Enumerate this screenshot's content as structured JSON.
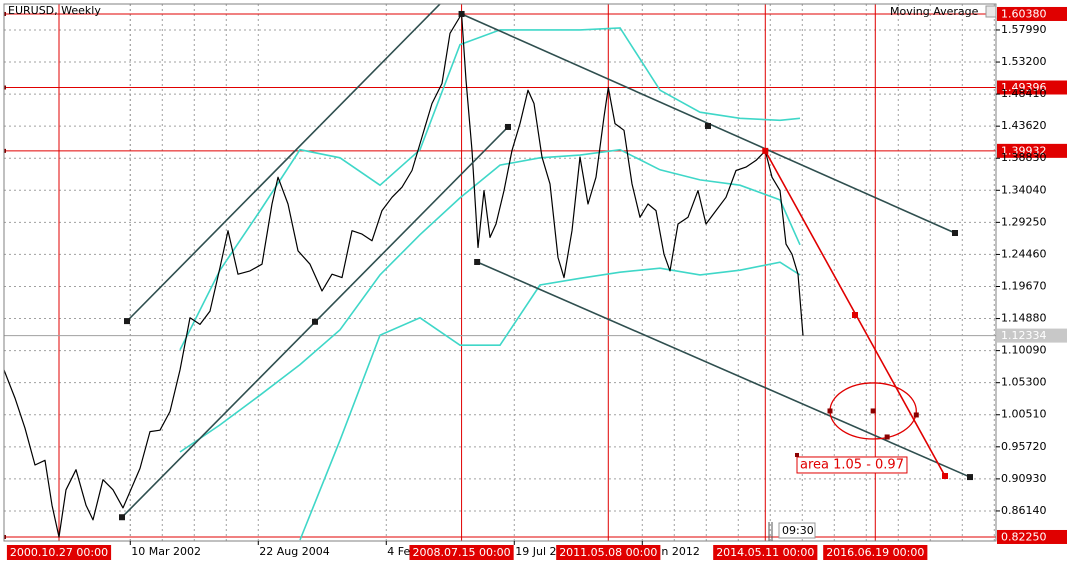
{
  "chart_data": {
    "type": "line",
    "title": "EURUSD, Weekly",
    "timer": "09:30",
    "grid": true,
    "xlim": [
      "1999-10-08",
      "2018-10-12"
    ],
    "ylim": [
      0.8165,
      1.6187
    ],
    "yticks": [
      {
        "value": 1.5799,
        "label": "1.57990"
      },
      {
        "value": 1.532,
        "label": "1.53200"
      },
      {
        "value": 1.4841,
        "label": "1.48410"
      },
      {
        "value": 1.4362,
        "label": "1.43620"
      },
      {
        "value": 1.3883,
        "label": "1.38830"
      },
      {
        "value": 1.3404,
        "label": "1.34040"
      },
      {
        "value": 1.2925,
        "label": "1.29250"
      },
      {
        "value": 1.2446,
        "label": "1.24460"
      },
      {
        "value": 1.1967,
        "label": "1.19670"
      },
      {
        "value": 1.1488,
        "label": "1.14880"
      },
      {
        "value": 1.1009,
        "label": "1.10090"
      },
      {
        "value": 1.053,
        "label": "1.05300"
      },
      {
        "value": 1.0051,
        "label": "1.00510"
      },
      {
        "value": 0.9572,
        "label": "0.95720"
      },
      {
        "value": 0.9093,
        "label": "0.90930"
      },
      {
        "value": 0.8614,
        "label": "0.86140"
      }
    ],
    "xticks": [
      {
        "value": "2002-03-10",
        "label": "10 Mar 2002"
      },
      {
        "value": "2004-08-22",
        "label": "22 Aug 2004"
      },
      {
        "value": "2007-02-04",
        "label": "4 Fe"
      },
      {
        "value": "2009-07-19",
        "label": "19 Jul 2"
      },
      {
        "value": "2012-01-01",
        "label": "n 2012"
      }
    ],
    "hlines": [
      {
        "value": 1.6038,
        "label": "1.60380"
      },
      1.49396,
      1.39932,
      {
        "value": 0.8225,
        "label": "0.82250"
      }
    ],
    "line_color": "#e00000",
    "current_price": 1.12334,
    "vlines": [
      {
        "value": "2000-10-27",
        "label": "2000.10.27 00:00"
      },
      {
        "value": "2008-07-15",
        "label": "2008.07.15 00:00"
      },
      {
        "value": "2011-05-08",
        "label": "2011.05.08 00:00"
      },
      {
        "value": "2014-05-11",
        "label": "2014.05.11 00:00"
      },
      {
        "value": "2016-06-19",
        "label": "2016.06.19 00:00"
      }
    ],
    "x": [
      "1999-10-08",
      "1999-12-24",
      "2000-03-03",
      "2000-05-12",
      "2000-07-21",
      "2000-09-08",
      "2000-10-27",
      "2000-12-15",
      "2001-02-23",
      "2001-05-04",
      "2001-06-22",
      "2001-08-31",
      "2001-11-09",
      "2002-01-18",
      "2002-05-17",
      "2002-07-26",
      "2002-10-04",
      "2002-12-13",
      "2003-02-21",
      "2003-05-02",
      "2003-07-11",
      "2003-09-19",
      "2003-11-28",
      "2004-01-23",
      "2004-04-02",
      "2004-06-25",
      "2004-09-17",
      "2004-11-26",
      "2005-01-07",
      "2005-03-18",
      "2005-05-27",
      "2005-08-19",
      "2005-11-11",
      "2006-01-20",
      "2006-03-31",
      "2006-06-09",
      "2006-08-18",
      "2006-10-27",
      "2007-01-05",
      "2007-03-16",
      "2007-05-25",
      "2007-08-03",
      "2007-10-12",
      "2007-12-21",
      "2008-02-29",
      "2008-04-25",
      "2008-07-15",
      "2008-08-15",
      "2008-09-26",
      "2008-11-07",
      "2008-12-19",
      "2009-01-30",
      "2009-03-13",
      "2009-05-08",
      "2009-07-03",
      "2009-08-28",
      "2009-10-23",
      "2009-12-04",
      "2010-01-29",
      "2010-03-26",
      "2010-05-21",
      "2010-07-02",
      "2010-08-27",
      "2010-10-22",
      "2010-12-17",
      "2011-02-11",
      "2011-04-08",
      "2011-05-08",
      "2011-06-24",
      "2011-08-26",
      "2011-10-21",
      "2011-12-16",
      "2012-02-10",
      "2012-04-06",
      "2012-06-01",
      "2012-07-13",
      "2012-09-07",
      "2012-11-16",
      "2013-01-25",
      "2013-03-22",
      "2013-05-31",
      "2013-08-09",
      "2013-10-18",
      "2013-12-27",
      "2014-03-07",
      "2014-05-11",
      "2014-06-27",
      "2014-08-22",
      "2014-10-03",
      "2014-11-14",
      "2014-12-26",
      "2015-01-30"
    ],
    "series": [
      {
        "color": "#000000",
        "values": [
          1.072,
          1.03,
          0.985,
          0.93,
          0.937,
          0.87,
          0.8225,
          0.893,
          0.923,
          0.87,
          0.848,
          0.908,
          0.893,
          0.866,
          0.925,
          0.98,
          0.982,
          1.01,
          1.072,
          1.15,
          1.14,
          1.16,
          1.225,
          1.28,
          1.215,
          1.22,
          1.23,
          1.32,
          1.36,
          1.32,
          1.25,
          1.23,
          1.19,
          1.215,
          1.21,
          1.28,
          1.275,
          1.265,
          1.31,
          1.33,
          1.345,
          1.37,
          1.42,
          1.47,
          1.5,
          1.575,
          1.6038,
          1.505,
          1.4,
          1.255,
          1.34,
          1.27,
          1.29,
          1.34,
          1.4,
          1.44,
          1.49,
          1.47,
          1.39,
          1.35,
          1.24,
          1.21,
          1.28,
          1.39,
          1.32,
          1.36,
          1.45,
          1.494,
          1.44,
          1.43,
          1.35,
          1.3,
          1.32,
          1.31,
          1.245,
          1.22,
          1.29,
          1.3,
          1.34,
          1.29,
          1.31,
          1.33,
          1.37,
          1.375,
          1.385,
          1.3993,
          1.36,
          1.34,
          1.26,
          1.245,
          1.215,
          1.12334
        ]
      }
    ],
    "indicator": {
      "name": "Moving Average",
      "color": "#3fd7c8",
      "x": [
        "2003-02-21",
        "2003-11-28",
        "2004-09-07",
        "2005-06-10",
        "2006-03-17",
        "2006-12-22",
        "2007-09-28",
        "2008-07-04",
        "2009-04-10",
        "2010-01-15",
        "2010-10-22",
        "2011-07-30",
        "2012-05-04",
        "2013-02-08",
        "2013-11-15",
        "2014-08-22",
        "2015-01-09"
      ],
      "bands": [
        [
          1.102,
          1.221,
          1.311,
          1.401,
          1.389,
          1.348,
          1.401,
          1.558,
          1.58,
          1.58,
          1.58,
          1.583,
          1.49,
          1.457,
          1.448,
          1.445,
          1.448
        ],
        [
          0.9495,
          0.99,
          1.035,
          1.08,
          1.132,
          1.214,
          1.274,
          1.329,
          1.378,
          1.389,
          1.393,
          1.401,
          1.371,
          1.356,
          1.348,
          1.326,
          1.259
        ],
        [
          null,
          null,
          null,
          0.818,
          0.967,
          1.124,
          1.15,
          1.109,
          1.109,
          1.199,
          1.209,
          1.218,
          1.224,
          1.214,
          1.221,
          1.233,
          1.214
        ]
      ]
    },
    "trendlines": [
      {
        "color": "#2f4f4f",
        "x": [
          "2002-02-15",
          "2008-02-15"
        ],
        "y": [
          1.145,
          1.6187
        ]
      },
      {
        "color": "#2f4f4f",
        "x": [
          "2002-01-11",
          "2005-09-23",
          "2009-06-05"
        ],
        "y": [
          0.852,
          1.144,
          1.435
        ]
      },
      {
        "color": "#2f4f4f",
        "x": [
          "2008-07-15",
          "2013-04-05",
          "2017-12-29"
        ],
        "y": [
          1.6038,
          1.4365,
          1.2766
        ]
      },
      {
        "color": "#2f4f4f",
        "x": [
          "2008-11-01",
          "2018-04-13"
        ],
        "y": [
          1.2333,
          0.912
        ]
      },
      {
        "color": "#e00000",
        "x": [
          "2014-05-11",
          "2016-01-29",
          "2017-10-20"
        ],
        "y": [
          1.3993,
          1.1541,
          0.9136
        ]
      }
    ],
    "ellipse": {
      "color": "#e00000",
      "x": [
        "2015-08-07",
        "2017-04-02"
      ],
      "y": [
        1.0526,
        0.9689
      ]
    },
    "annotation": {
      "text": "area 1.05 - 0.97",
      "color": "#e00000",
      "x": "2014-12-19",
      "y": 0.945
    }
  }
}
